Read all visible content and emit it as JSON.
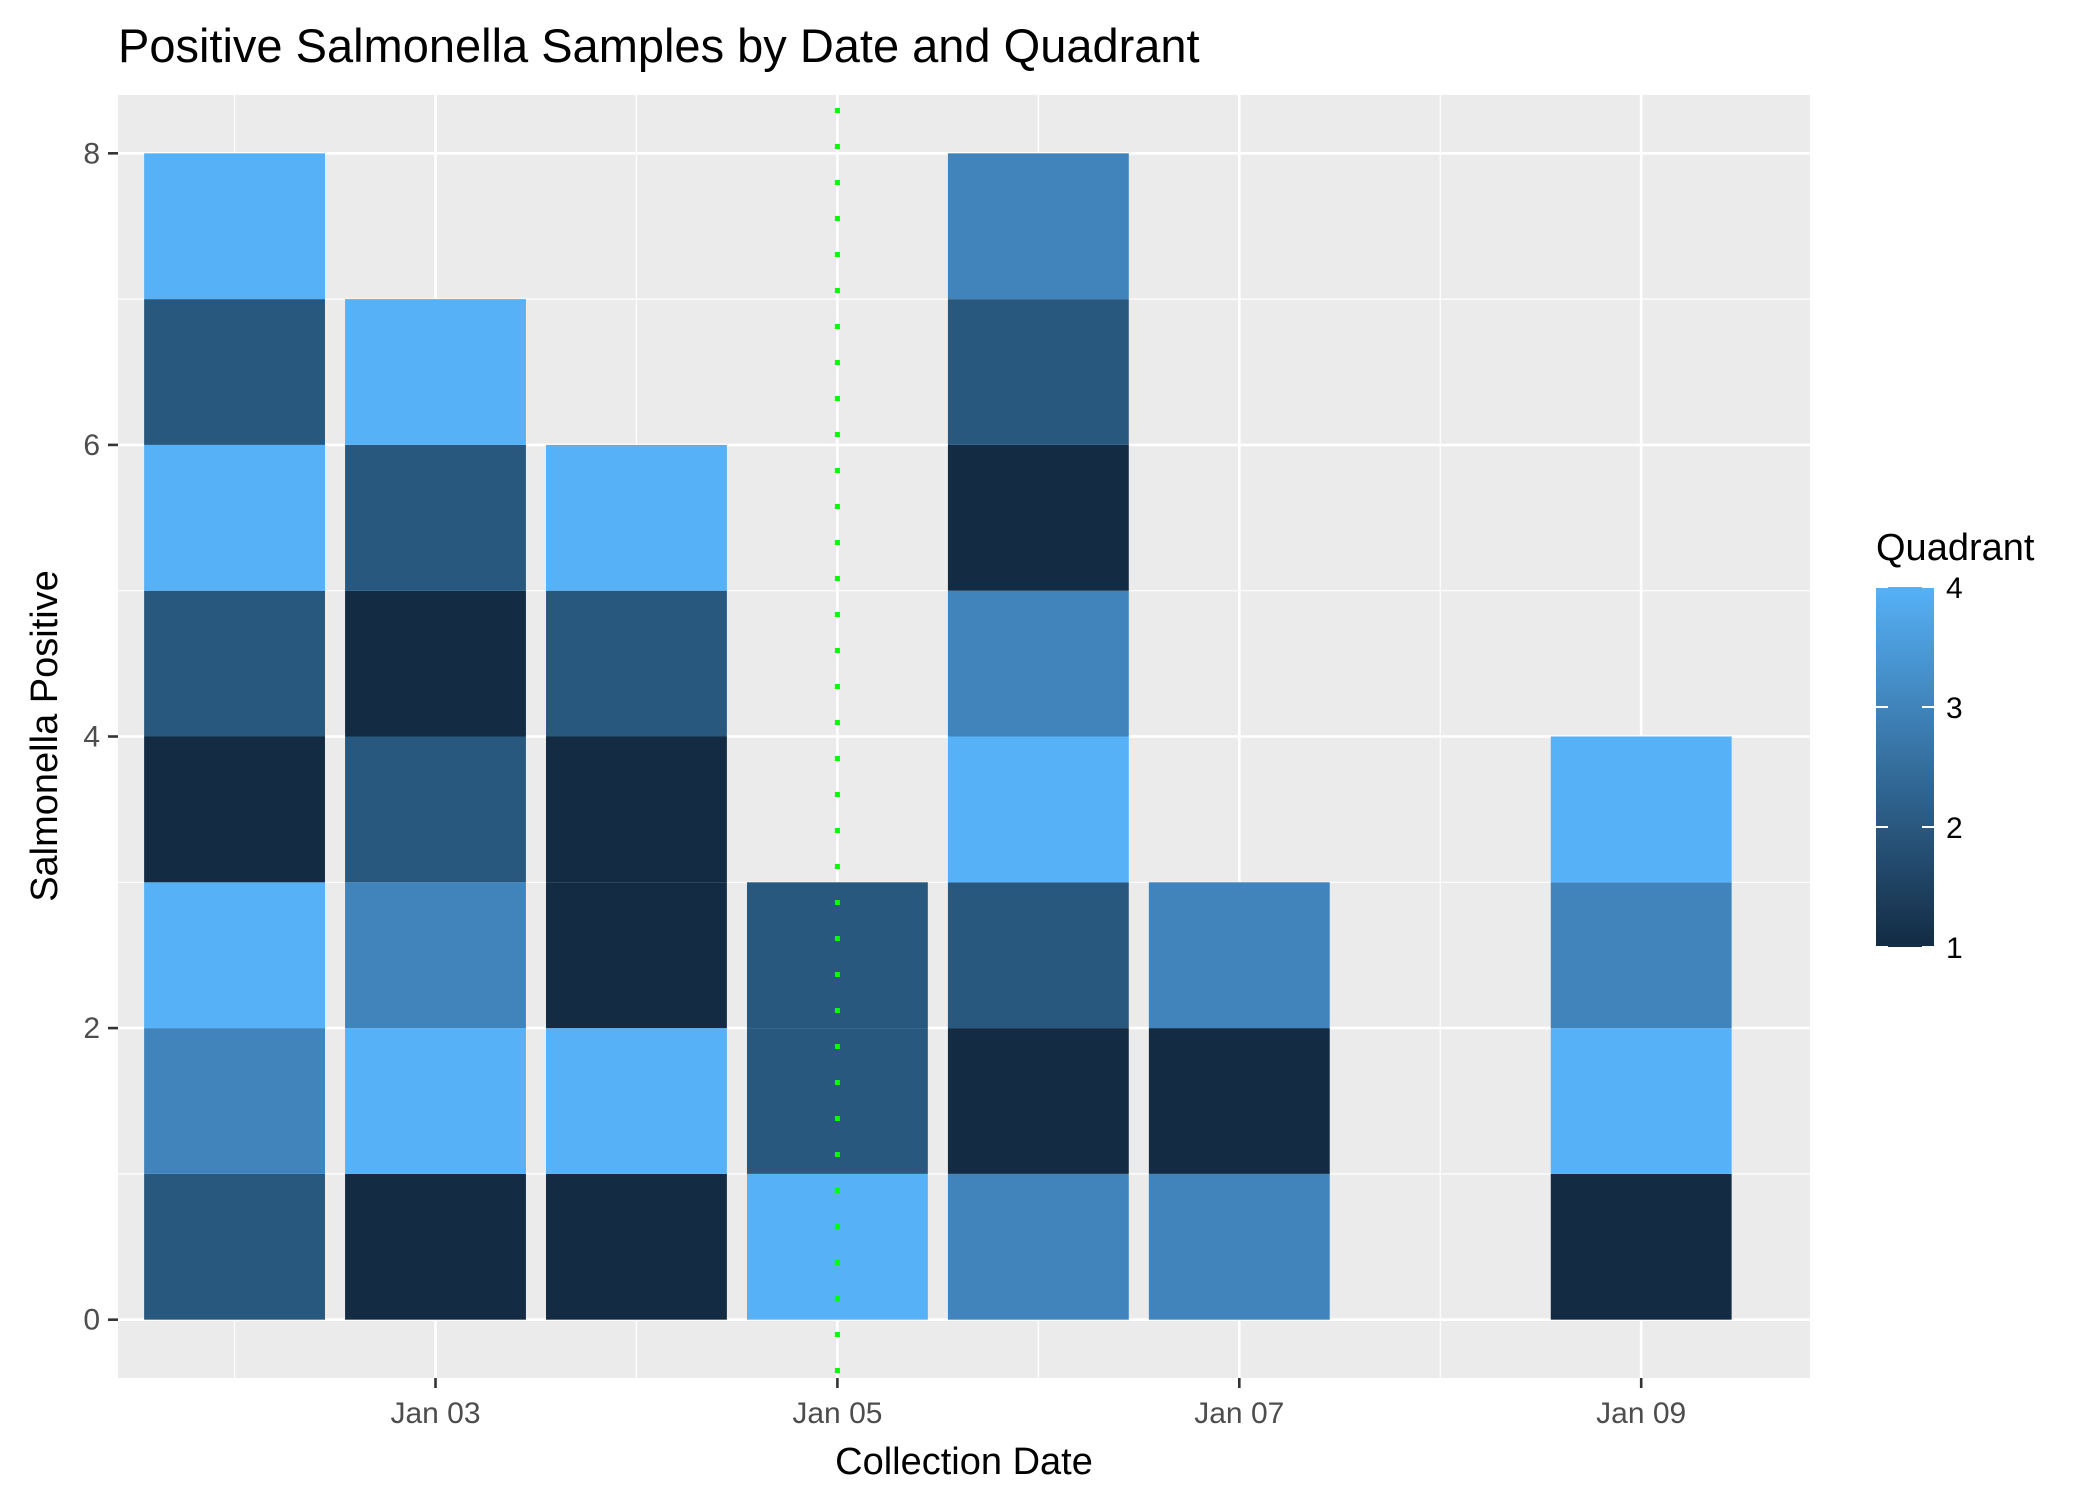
{
  "chart_data": {
    "type": "bar",
    "stacked": true,
    "title": "Positive Salmonella Samples by Date and Quadrant",
    "xlabel": "Collection Date",
    "ylabel": "Salmonella Positive",
    "x_tick_labels": [
      "Jan 03",
      "Jan 05",
      "Jan 07",
      "Jan 09"
    ],
    "x_tick_dates": [
      3,
      5,
      7,
      9
    ],
    "y_ticks": [
      0,
      2,
      4,
      6,
      8
    ],
    "xlim": [
      1.42,
      9.84
    ],
    "ylim": [
      -0.4,
      8.4
    ],
    "grid": true,
    "reference_line": {
      "date": 5,
      "color": "#00ff00",
      "style": "dotted"
    },
    "legend": {
      "title": "Quadrant",
      "position": "right",
      "type": "colorbar",
      "min": 1,
      "max": 4,
      "ticks": [
        "1",
        "2",
        "3",
        "4"
      ],
      "color_low": "#132B43",
      "color_high": "#56B1F7"
    },
    "bars": [
      {
        "date": 2,
        "quadrants": [
          2,
          3,
          4,
          1,
          2,
          4,
          2,
          4
        ]
      },
      {
        "date": 3,
        "quadrants": [
          1,
          4,
          3,
          2,
          1,
          2,
          4
        ]
      },
      {
        "date": 4,
        "quadrants": [
          1,
          4,
          1,
          1,
          2,
          4
        ]
      },
      {
        "date": 5,
        "quadrants": [
          4,
          2,
          2
        ]
      },
      {
        "date": 6,
        "quadrants": [
          3,
          1,
          2,
          4,
          3,
          1,
          2,
          3
        ]
      },
      {
        "date": 7,
        "quadrants": [
          3,
          1,
          3
        ]
      },
      {
        "date": 9,
        "quadrants": [
          1,
          4,
          3,
          4
        ]
      }
    ]
  }
}
